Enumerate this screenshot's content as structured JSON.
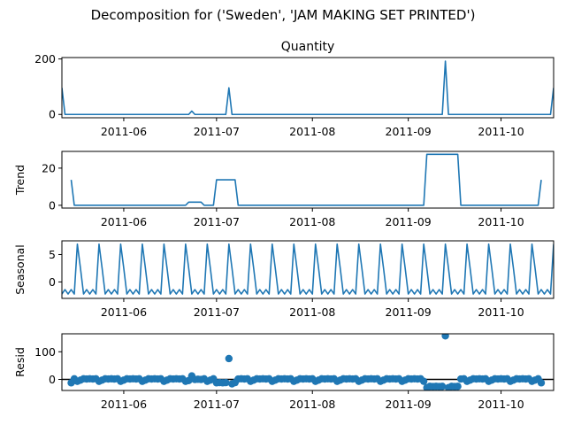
{
  "chart_data": {
    "type": "line",
    "title": "Decomposition for ('Sweden', 'JAM MAKING SET PRINTED')",
    "series_color": "#1f77b4",
    "x_start": "2011-05-12",
    "x_end": "2011-10-18",
    "xticks": [
      "2011-06",
      "2011-07",
      "2011-08",
      "2011-09",
      "2011-10"
    ],
    "panels": [
      {
        "name": "observed",
        "title": "Quantity",
        "ylabel": "",
        "kind": "line",
        "ylim": [
          -12,
          205
        ],
        "yticks": [
          0,
          200
        ],
        "points": [
          [
            "2011-05-12",
            96
          ],
          [
            "2011-05-13",
            0
          ],
          [
            "2011-06-22",
            0
          ],
          [
            "2011-06-23",
            12
          ],
          [
            "2011-06-24",
            0
          ],
          [
            "2011-07-04",
            0
          ],
          [
            "2011-07-05",
            96
          ],
          [
            "2011-07-06",
            0
          ],
          [
            "2011-09-12",
            0
          ],
          [
            "2011-09-13",
            192
          ],
          [
            "2011-09-14",
            0
          ],
          [
            "2011-10-17",
            0
          ],
          [
            "2011-10-18",
            96
          ]
        ]
      },
      {
        "name": "trend",
        "title": "",
        "ylabel": "Trend",
        "kind": "line",
        "ylim": [
          -1.5,
          29
        ],
        "yticks": [
          0,
          20
        ],
        "points": [
          [
            "2011-05-15",
            13.7
          ],
          [
            "2011-05-16",
            0
          ],
          [
            "2011-06-21",
            0
          ],
          [
            "2011-06-22",
            1.7
          ],
          [
            "2011-06-26",
            1.7
          ],
          [
            "2011-06-27",
            0
          ],
          [
            "2011-06-30",
            0
          ],
          [
            "2011-07-01",
            13.7
          ],
          [
            "2011-07-07",
            13.7
          ],
          [
            "2011-07-08",
            0
          ],
          [
            "2011-09-06",
            0
          ],
          [
            "2011-09-07",
            27.4
          ],
          [
            "2011-09-17",
            27.4
          ],
          [
            "2011-09-18",
            0
          ],
          [
            "2011-10-13",
            0
          ],
          [
            "2011-10-14",
            13.7
          ]
        ]
      },
      {
        "name": "seasonal",
        "title": "",
        "ylabel": "Seasonal",
        "kind": "line",
        "period_days": 7,
        "ylim": [
          -3.0,
          7.5
        ],
        "yticks": [
          0,
          5
        ],
        "weekly_pattern": [
          -2.2,
          -1.4,
          -2.2,
          -1.4,
          -2.2,
          6.9,
          2.5
        ],
        "points": []
      },
      {
        "name": "resid",
        "title": "",
        "ylabel": "Resid",
        "kind": "scatter",
        "ylim": [
          -40,
          165
        ],
        "yticks": [
          0,
          100
        ],
        "points": []
      }
    ]
  }
}
